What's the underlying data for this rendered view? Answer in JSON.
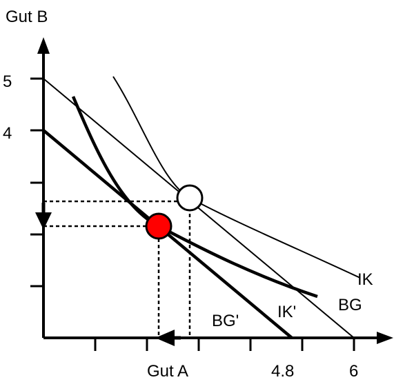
{
  "axes": {
    "y_label": "Gut B",
    "x_label": "Gut A"
  },
  "y_ticks": [
    "5",
    "4"
  ],
  "x_ticks": [
    "4.8",
    "6"
  ],
  "curves": {
    "ik": "IK",
    "bg": "BG",
    "ik_prime": "IK'",
    "bg_prime": "BG'"
  },
  "points": {
    "initial_optimum_color": "#ffffff",
    "new_optimum_color": "#ff0000"
  }
}
